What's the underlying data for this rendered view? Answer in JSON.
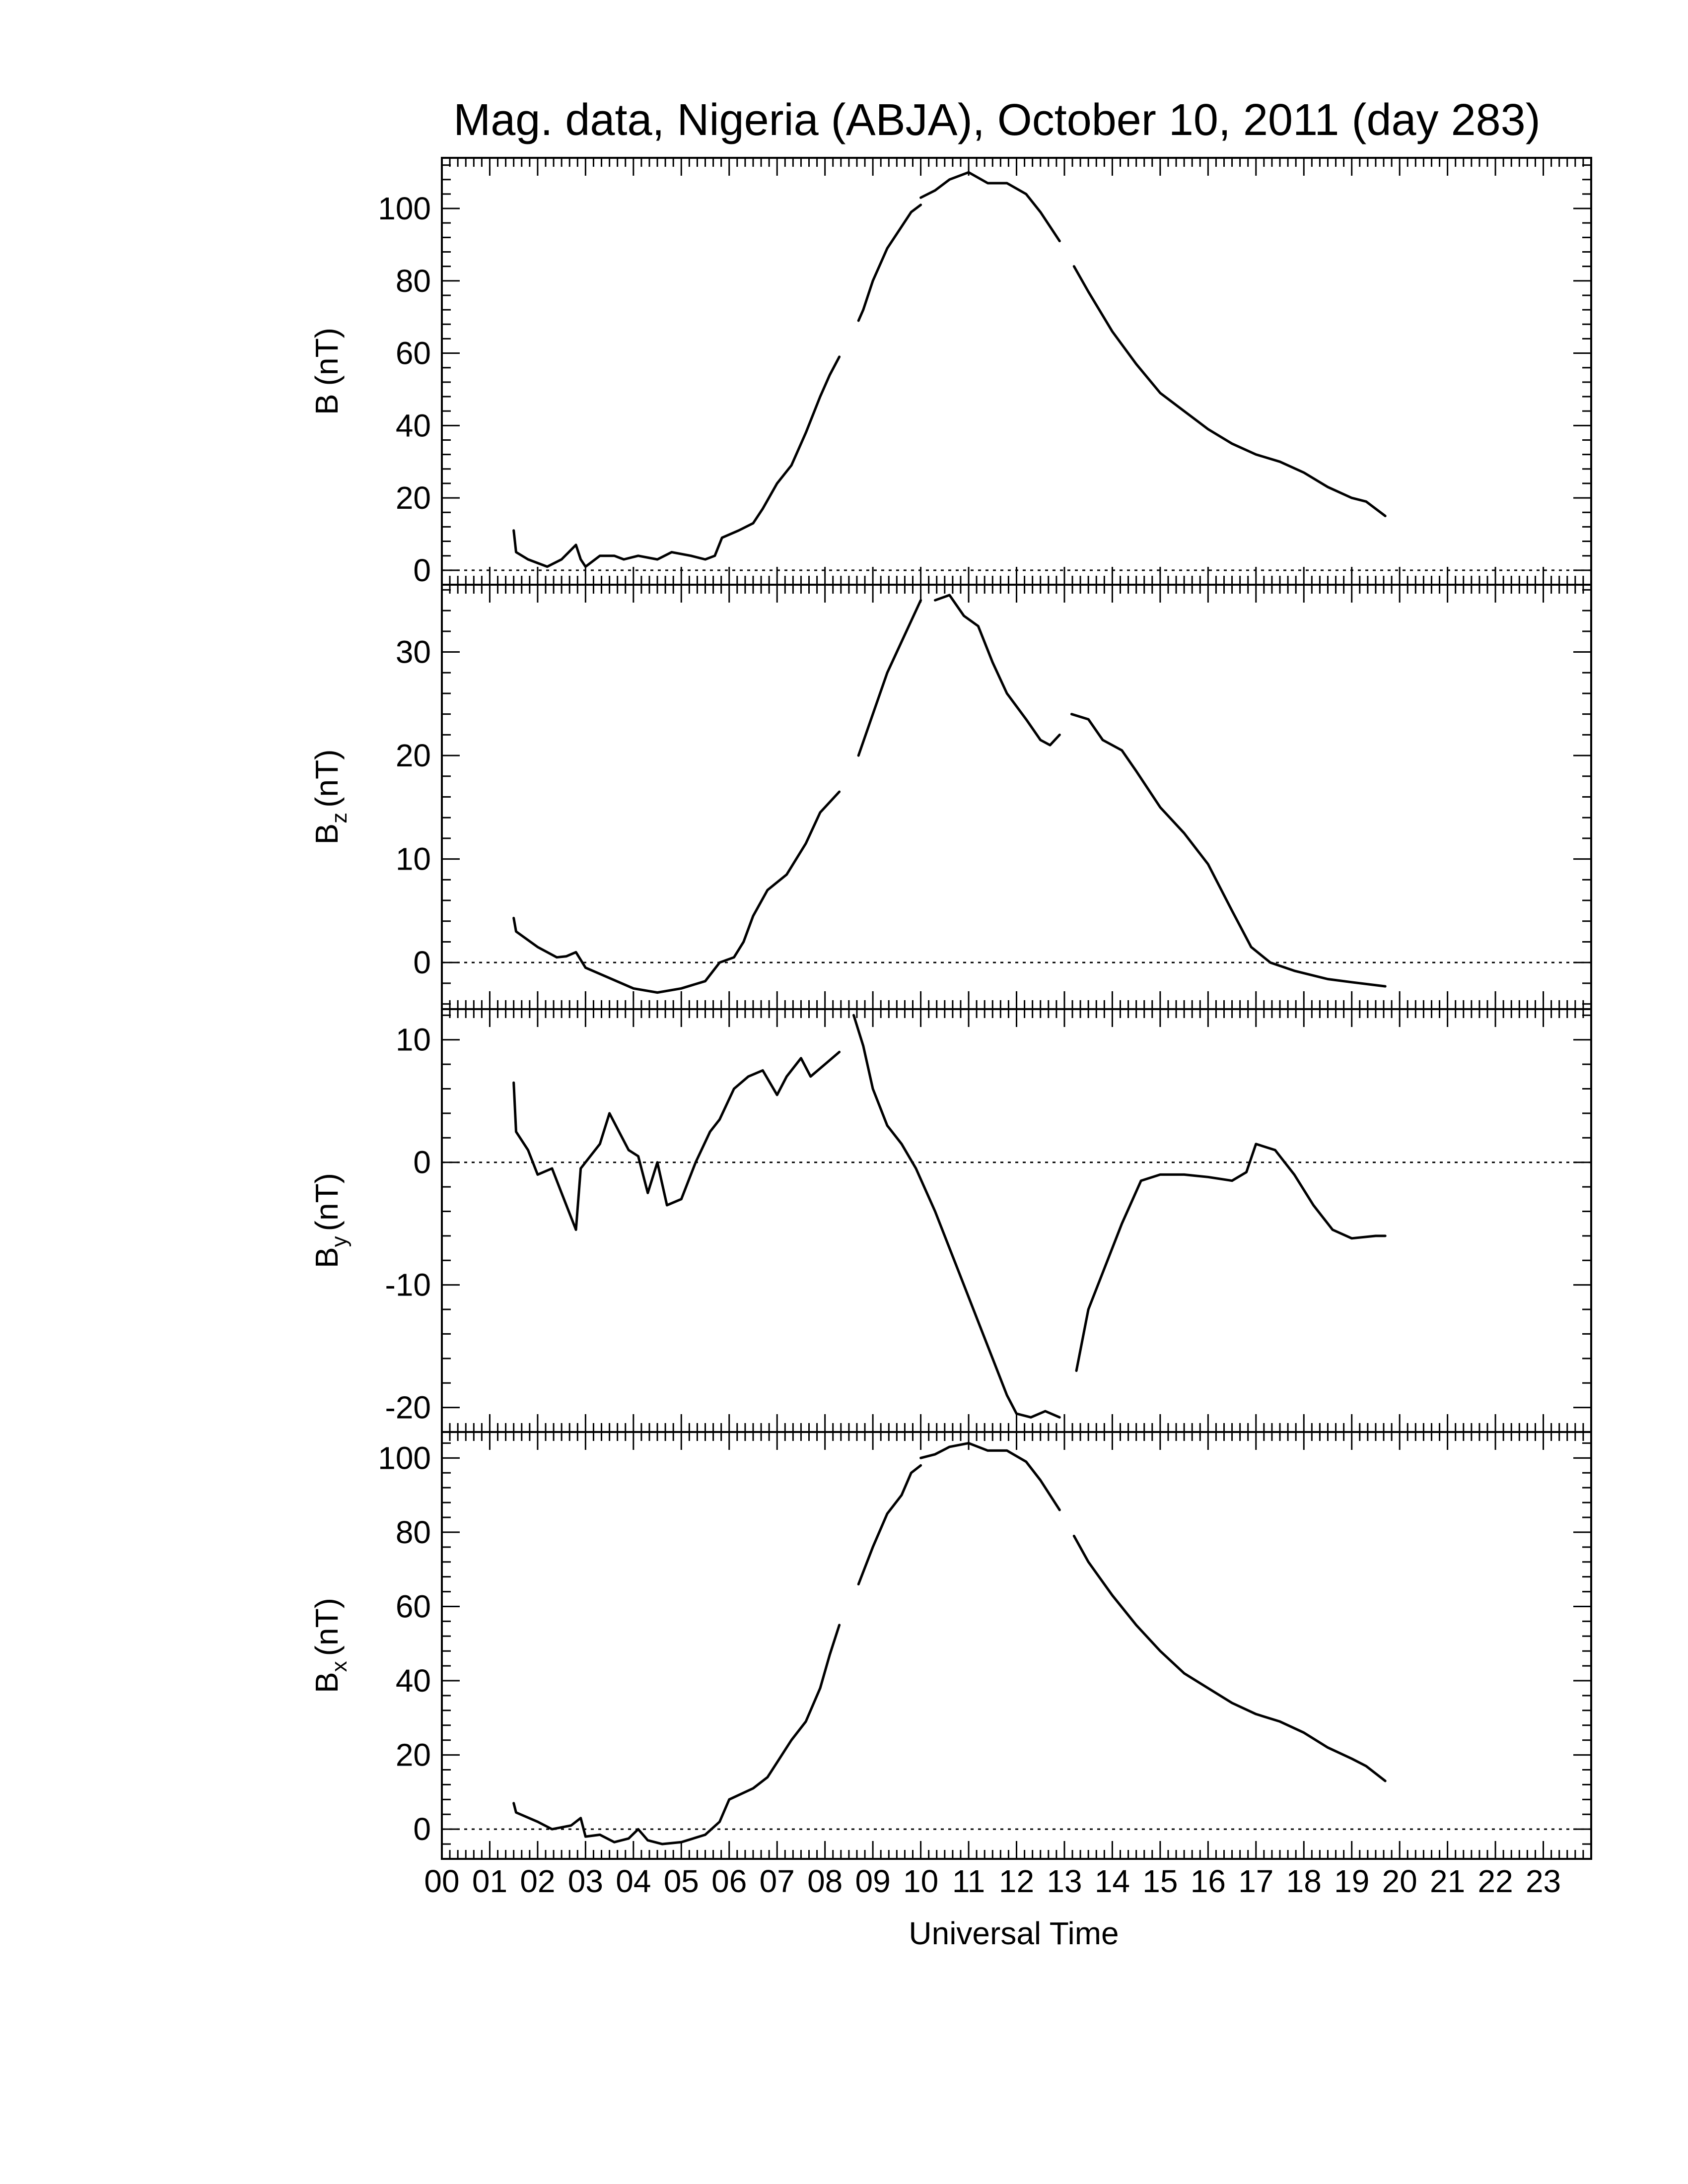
{
  "figure": {
    "title": "Mag. data, Nigeria (ABJA), October 10, 2011 (day 283)",
    "xlabel": "Universal Time"
  },
  "chart_data": [
    {
      "type": "line",
      "panel": "B",
      "ylabel_main": "B",
      "ylabel_sub": "",
      "ylabel_unit": "(nT)",
      "xlim": [
        0,
        24
      ],
      "ylim": [
        -4,
        114
      ],
      "yticks": [
        0,
        20,
        40,
        60,
        80,
        100
      ],
      "ytick_labels": [
        "0",
        "20",
        "40",
        "60",
        "80",
        "100"
      ],
      "zero_line": true,
      "segments": [
        [
          [
            1.5,
            11
          ],
          [
            1.55,
            5
          ],
          [
            1.8,
            3
          ],
          [
            2.2,
            1
          ],
          [
            2.5,
            3
          ],
          [
            2.8,
            7
          ],
          [
            2.9,
            3
          ],
          [
            3.0,
            1
          ],
          [
            3.3,
            4
          ],
          [
            3.6,
            4
          ],
          [
            3.8,
            3
          ],
          [
            4.1,
            4
          ],
          [
            4.5,
            3
          ],
          [
            4.8,
            5
          ],
          [
            5.2,
            4
          ],
          [
            5.5,
            3
          ],
          [
            5.7,
            4
          ],
          [
            5.85,
            9
          ],
          [
            6.2,
            11
          ],
          [
            6.5,
            13
          ],
          [
            6.7,
            17
          ],
          [
            7.0,
            24
          ],
          [
            7.3,
            29
          ],
          [
            7.6,
            38
          ],
          [
            7.9,
            48
          ],
          [
            8.1,
            54
          ],
          [
            8.3,
            59
          ]
        ],
        [
          [
            8.7,
            69
          ],
          [
            8.8,
            72
          ],
          [
            9.0,
            80
          ],
          [
            9.3,
            89
          ],
          [
            9.6,
            95
          ],
          [
            9.8,
            99
          ],
          [
            10.0,
            101
          ]
        ],
        [
          [
            10.0,
            103
          ],
          [
            10.3,
            105
          ],
          [
            10.6,
            108
          ],
          [
            11.0,
            110
          ],
          [
            11.4,
            107
          ],
          [
            11.8,
            107
          ],
          [
            12.2,
            104
          ],
          [
            12.5,
            99
          ],
          [
            12.9,
            91
          ]
        ],
        [
          [
            13.2,
            84
          ],
          [
            13.5,
            77
          ],
          [
            14.0,
            66
          ],
          [
            14.5,
            57
          ],
          [
            15.0,
            49
          ],
          [
            15.5,
            44
          ],
          [
            16.0,
            39
          ],
          [
            16.5,
            35
          ],
          [
            17.0,
            32
          ],
          [
            17.5,
            30
          ],
          [
            18.0,
            27
          ],
          [
            18.5,
            23
          ],
          [
            19.0,
            20
          ],
          [
            19.3,
            19
          ],
          [
            19.7,
            15
          ]
        ]
      ]
    },
    {
      "type": "line",
      "panel": "Bz",
      "ylabel_main": "B",
      "ylabel_sub": "z",
      "ylabel_unit": "(nT)",
      "xlim": [
        0,
        24
      ],
      "ylim": [
        -4.5,
        36.5
      ],
      "yticks": [
        0,
        10,
        20,
        30
      ],
      "ytick_labels": [
        "0",
        "10",
        "20",
        "30"
      ],
      "zero_line": true,
      "segments": [
        [
          [
            1.5,
            4.3
          ],
          [
            1.55,
            3.0
          ],
          [
            2.0,
            1.5
          ],
          [
            2.4,
            0.5
          ],
          [
            2.6,
            0.6
          ],
          [
            2.8,
            1.0
          ],
          [
            3.0,
            -0.5
          ],
          [
            3.5,
            -1.5
          ],
          [
            4.0,
            -2.5
          ],
          [
            4.5,
            -2.9
          ],
          [
            5.0,
            -2.5
          ],
          [
            5.5,
            -1.8
          ],
          [
            5.8,
            0.0
          ],
          [
            6.1,
            0.5
          ],
          [
            6.3,
            2.0
          ],
          [
            6.5,
            4.5
          ],
          [
            6.8,
            7.0
          ],
          [
            7.2,
            8.5
          ],
          [
            7.6,
            11.5
          ],
          [
            7.9,
            14.5
          ],
          [
            8.3,
            16.5
          ]
        ],
        [
          [
            8.7,
            20.0
          ],
          [
            9.0,
            24.0
          ],
          [
            9.3,
            28.0
          ],
          [
            9.6,
            31.0
          ],
          [
            9.8,
            33.0
          ],
          [
            10.0,
            35.0
          ]
        ],
        [
          [
            10.3,
            35.0
          ],
          [
            10.6,
            35.5
          ],
          [
            10.9,
            33.5
          ],
          [
            11.2,
            32.5
          ],
          [
            11.5,
            29.0
          ],
          [
            11.8,
            26.0
          ],
          [
            12.2,
            23.5
          ],
          [
            12.5,
            21.5
          ],
          [
            12.7,
            21.0
          ],
          [
            12.9,
            22.0
          ]
        ],
        [
          [
            13.15,
            24.0
          ],
          [
            13.5,
            23.5
          ],
          [
            13.8,
            21.5
          ],
          [
            14.2,
            20.5
          ],
          [
            14.5,
            18.5
          ],
          [
            15.0,
            15.0
          ],
          [
            15.5,
            12.5
          ],
          [
            16.0,
            9.5
          ],
          [
            16.5,
            5.0
          ],
          [
            16.9,
            1.5
          ],
          [
            17.3,
            0.0
          ],
          [
            17.8,
            -0.8
          ],
          [
            18.5,
            -1.6
          ],
          [
            19.0,
            -1.9
          ],
          [
            19.7,
            -2.3
          ]
        ]
      ]
    },
    {
      "type": "line",
      "panel": "By",
      "ylabel_main": "B",
      "ylabel_sub": "y",
      "ylabel_unit": "(nT)",
      "xlim": [
        0,
        24
      ],
      "ylim": [
        -22,
        12.5
      ],
      "yticks": [
        -20,
        -10,
        0,
        10
      ],
      "ytick_labels": [
        "-20",
        "-10",
        "0",
        "10"
      ],
      "zero_line": true,
      "segments": [
        [
          [
            1.5,
            6.5
          ],
          [
            1.55,
            2.5
          ],
          [
            1.8,
            1.0
          ],
          [
            2.0,
            -1.0
          ],
          [
            2.3,
            -0.5
          ],
          [
            2.5,
            -2.5
          ],
          [
            2.8,
            -5.5
          ],
          [
            2.9,
            -0.5
          ],
          [
            3.1,
            0.5
          ],
          [
            3.3,
            1.5
          ],
          [
            3.5,
            4.0
          ],
          [
            3.7,
            2.5
          ],
          [
            3.9,
            1.0
          ],
          [
            4.1,
            0.5
          ],
          [
            4.3,
            -2.5
          ],
          [
            4.5,
            0.0
          ],
          [
            4.7,
            -3.5
          ],
          [
            5.0,
            -3.0
          ],
          [
            5.3,
            0.0
          ],
          [
            5.6,
            2.5
          ],
          [
            5.8,
            3.5
          ],
          [
            6.1,
            6.0
          ],
          [
            6.4,
            7.0
          ],
          [
            6.7,
            7.5
          ],
          [
            7.0,
            5.5
          ],
          [
            7.2,
            7.0
          ],
          [
            7.5,
            8.5
          ],
          [
            7.7,
            7.0
          ],
          [
            8.0,
            8.0
          ],
          [
            8.3,
            9.0
          ]
        ],
        [
          [
            8.6,
            12.0
          ],
          [
            8.8,
            9.5
          ],
          [
            9.0,
            6.0
          ],
          [
            9.3,
            3.0
          ],
          [
            9.6,
            1.5
          ],
          [
            9.9,
            -0.5
          ],
          [
            10.3,
            -4.0
          ],
          [
            10.8,
            -9.0
          ],
          [
            11.2,
            -13.0
          ],
          [
            11.5,
            -16.0
          ],
          [
            11.8,
            -19.0
          ],
          [
            12.0,
            -20.5
          ],
          [
            12.3,
            -20.8
          ],
          [
            12.6,
            -20.3
          ],
          [
            12.9,
            -20.8
          ]
        ],
        [
          [
            13.25,
            -17.0
          ],
          [
            13.5,
            -12.0
          ],
          [
            13.8,
            -9.0
          ],
          [
            14.2,
            -5.0
          ],
          [
            14.6,
            -1.5
          ],
          [
            15.0,
            -1.0
          ],
          [
            15.5,
            -1.0
          ],
          [
            16.0,
            -1.2
          ],
          [
            16.5,
            -1.5
          ],
          [
            16.8,
            -0.8
          ],
          [
            17.0,
            1.5
          ],
          [
            17.4,
            1.0
          ],
          [
            17.8,
            -1.0
          ],
          [
            18.2,
            -3.5
          ],
          [
            18.6,
            -5.5
          ],
          [
            19.0,
            -6.2
          ],
          [
            19.5,
            -6.0
          ],
          [
            19.7,
            -6.0
          ]
        ]
      ]
    },
    {
      "type": "line",
      "panel": "Bx",
      "ylabel_main": "B",
      "ylabel_sub": "x",
      "ylabel_unit": "(nT)",
      "xlim": [
        0,
        24
      ],
      "ylim": [
        -8,
        107
      ],
      "yticks": [
        0,
        20,
        40,
        60,
        80,
        100
      ],
      "ytick_labels": [
        "0",
        "20",
        "40",
        "60",
        "80",
        "100"
      ],
      "zero_line": true,
      "segments": [
        [
          [
            1.5,
            7.0
          ],
          [
            1.55,
            4.5
          ],
          [
            2.0,
            2.0
          ],
          [
            2.3,
            0.0
          ],
          [
            2.7,
            1.0
          ],
          [
            2.9,
            3.0
          ],
          [
            3.0,
            -2.0
          ],
          [
            3.3,
            -1.5
          ],
          [
            3.6,
            -3.5
          ],
          [
            3.9,
            -2.5
          ],
          [
            4.1,
            0.0
          ],
          [
            4.3,
            -3.0
          ],
          [
            4.6,
            -4.0
          ],
          [
            5.0,
            -3.5
          ],
          [
            5.5,
            -1.5
          ],
          [
            5.8,
            2.0
          ],
          [
            6.0,
            8.0
          ],
          [
            6.5,
            11.0
          ],
          [
            6.8,
            14.0
          ],
          [
            7.0,
            18.0
          ],
          [
            7.3,
            24.0
          ],
          [
            7.6,
            29.0
          ],
          [
            7.9,
            38.0
          ],
          [
            8.1,
            47.0
          ],
          [
            8.3,
            55.0
          ]
        ],
        [
          [
            8.7,
            66.0
          ],
          [
            9.0,
            76.0
          ],
          [
            9.3,
            85.0
          ],
          [
            9.6,
            90.0
          ],
          [
            9.8,
            96.0
          ],
          [
            10.0,
            98.0
          ]
        ],
        [
          [
            10.0,
            100.0
          ],
          [
            10.3,
            101.0
          ],
          [
            10.6,
            103.0
          ],
          [
            11.0,
            104.0
          ],
          [
            11.4,
            102.0
          ],
          [
            11.8,
            102.0
          ],
          [
            12.2,
            99.0
          ],
          [
            12.5,
            94.0
          ],
          [
            12.9,
            86.0
          ]
        ],
        [
          [
            13.2,
            79.0
          ],
          [
            13.5,
            72.0
          ],
          [
            14.0,
            63.0
          ],
          [
            14.5,
            55.0
          ],
          [
            15.0,
            48.0
          ],
          [
            15.5,
            42.0
          ],
          [
            16.0,
            38.0
          ],
          [
            16.5,
            34.0
          ],
          [
            17.0,
            31.0
          ],
          [
            17.5,
            29.0
          ],
          [
            18.0,
            26.0
          ],
          [
            18.5,
            22.0
          ],
          [
            19.0,
            19.0
          ],
          [
            19.3,
            17.0
          ],
          [
            19.7,
            13.0
          ]
        ]
      ]
    }
  ],
  "xaxis": {
    "range": [
      0,
      24
    ],
    "tick_labels": [
      "00",
      "01",
      "02",
      "03",
      "04",
      "05",
      "06",
      "07",
      "08",
      "09",
      "10",
      "11",
      "12",
      "13",
      "14",
      "15",
      "16",
      "17",
      "18",
      "19",
      "20",
      "21",
      "22",
      "23"
    ]
  }
}
